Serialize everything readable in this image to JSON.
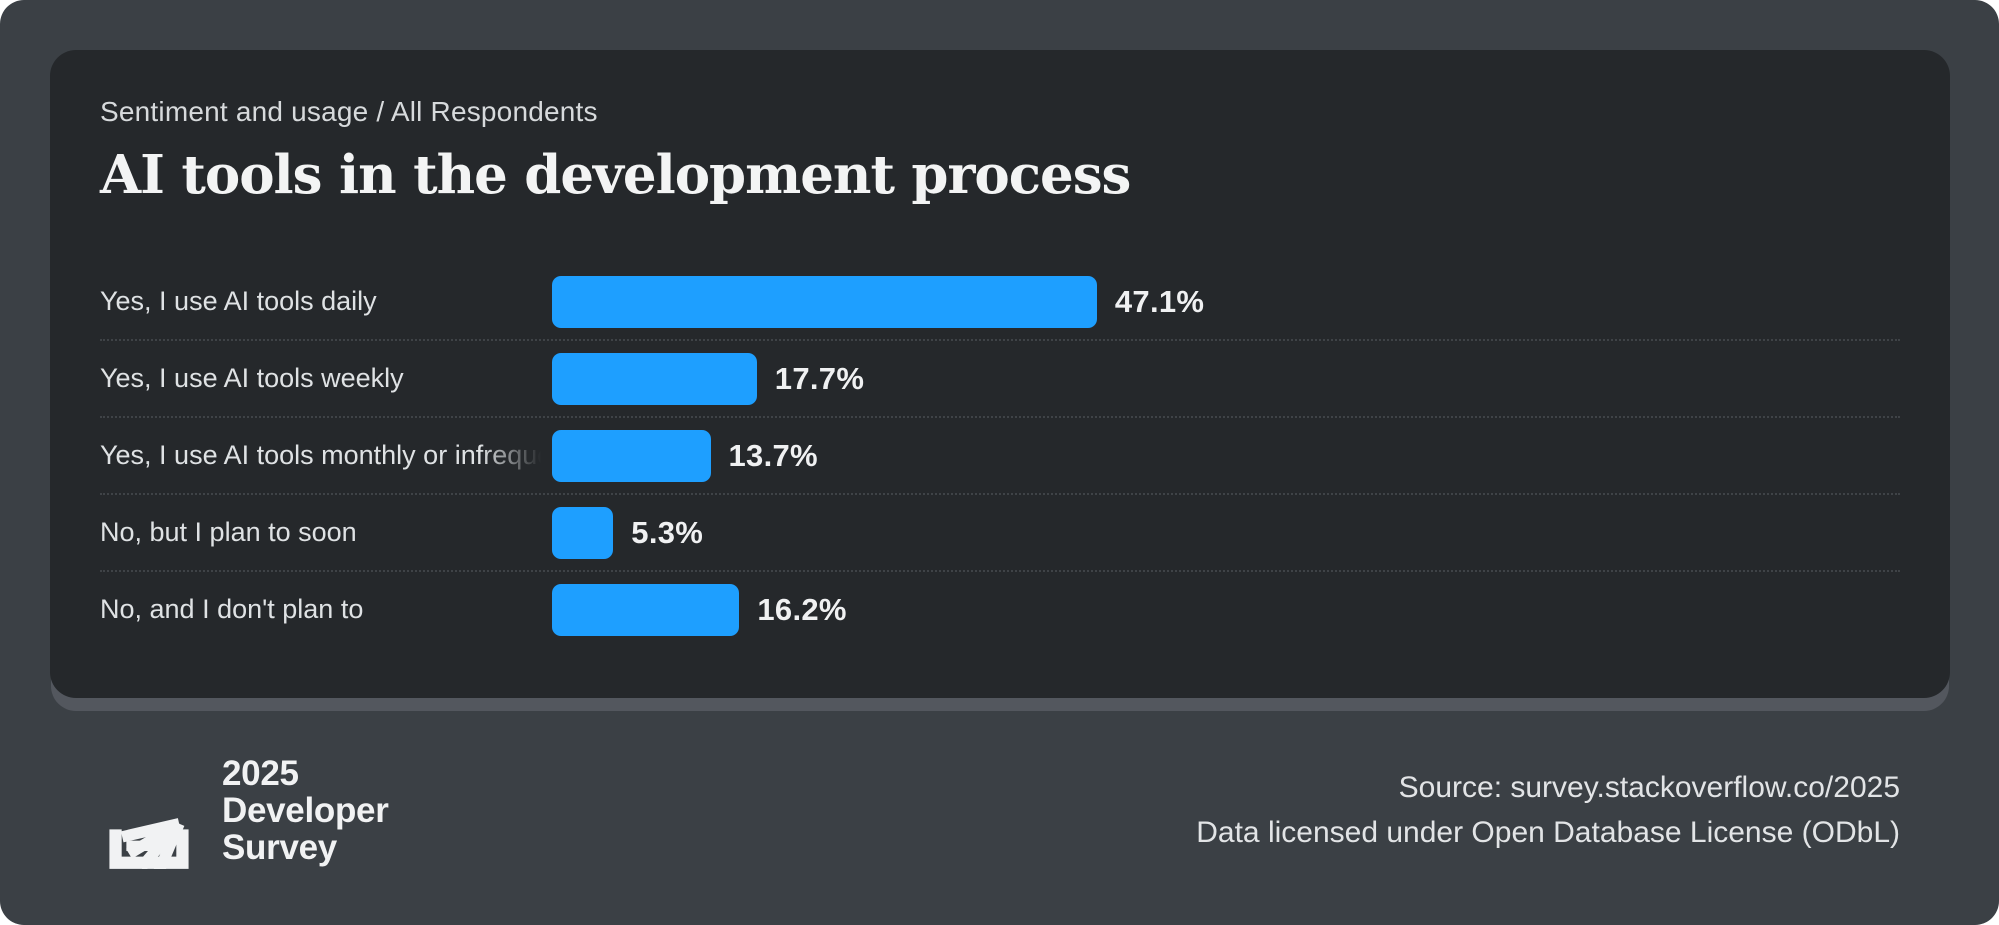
{
  "poster": {
    "breadcrumb": "Sentiment and usage / All Respondents",
    "title": "AI tools in the development process"
  },
  "chart_data": {
    "type": "bar",
    "orientation": "horizontal",
    "title": "AI tools in the development process",
    "categories": [
      "Yes, I use AI tools daily",
      "Yes, I use AI tools weekly",
      "Yes, I use AI tools monthly or infrequently",
      "No, but I plan to soon",
      "No, and I don't plan to"
    ],
    "values": [
      47.1,
      17.7,
      13.7,
      5.3,
      16.2
    ],
    "value_labels": [
      "47.1%",
      "17.7%",
      "13.7%",
      "5.3%",
      "16.2%"
    ],
    "bar_color": "#1E9FFF",
    "xlim": [
      0,
      100
    ],
    "grid": false,
    "legend": "none",
    "row_separator_style": "dotted"
  },
  "footer": {
    "logo_lines": [
      "2025",
      "Developer",
      "Survey"
    ],
    "logo_icon": "stackoverflow-logo",
    "source_line1": "Source: survey.stackoverflow.co/2025",
    "source_line2": "Data licensed under Open Database License (ODbL)"
  },
  "colors": {
    "background": "#3B4045",
    "card": "#25282B",
    "card_shadow": "#53575E",
    "bar": "#1E9FFF",
    "title_text": "#F3F4F4",
    "breadcrumb_text": "#D7DADC",
    "label_text": "#DFE2E4",
    "value_text": "#F0F1F2",
    "separator": "#3F4347",
    "footer_text": "#E2E4E6",
    "logo": "#F1F2F3"
  }
}
